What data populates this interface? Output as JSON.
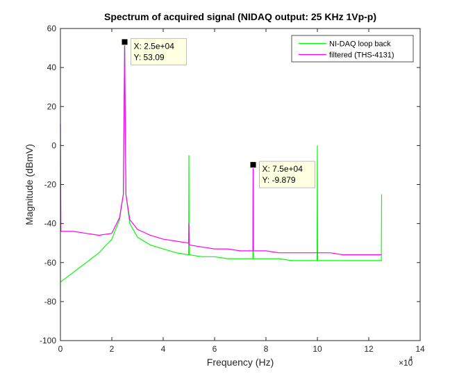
{
  "chart_data": {
    "type": "line",
    "title": "Spectrum of acquired signal (NIDAQ output: 25 KHz 1Vp-p)",
    "xlabel": "Frequency (Hz)",
    "ylabel": "Magnitude (dBmV)",
    "xlim": [
      0,
      140000
    ],
    "ylim": [
      -100,
      60
    ],
    "x_ticks": [
      0,
      20000,
      40000,
      60000,
      80000,
      100000,
      120000,
      140000
    ],
    "x_tick_labels": [
      "0",
      "2",
      "4",
      "6",
      "8",
      "10",
      "12",
      "14"
    ],
    "x_exponent_label": "×10",
    "x_exponent_power": "4",
    "y_ticks": [
      -100,
      -80,
      -60,
      -40,
      -20,
      0,
      20,
      40,
      60
    ],
    "y_tick_labels": [
      "-100",
      "-80",
      "-60",
      "-40",
      "-20",
      "0",
      "20",
      "40",
      "60"
    ],
    "grid": false,
    "legend_position": "top-right",
    "series": [
      {
        "name": "NI-DAQ loop back",
        "color": "#00ff00",
        "x": [
          0,
          2000,
          5000,
          10000,
          15000,
          20000,
          23000,
          24500,
          25000,
          25500,
          27000,
          30000,
          35000,
          40000,
          45000,
          49900,
          50000,
          50100,
          55000,
          60000,
          65000,
          70000,
          74900,
          75000,
          75100,
          80000,
          85000,
          90000,
          95000,
          99900,
          100000,
          100100,
          105000,
          110000,
          115000,
          120000,
          124900,
          125000
        ],
        "y": [
          -70,
          -68,
          -65,
          -60,
          -55,
          -48,
          -38,
          -25,
          53,
          -25,
          -40,
          -47,
          -51,
          -53,
          -55,
          -56,
          -5,
          -56,
          -57,
          -57,
          -58,
          -58,
          -58,
          -10,
          -58,
          -58,
          -58,
          -59,
          -59,
          -59,
          0,
          -59,
          -59,
          -59,
          -59,
          -59,
          -59,
          -25
        ]
      },
      {
        "name": "filtered (THS-4131)",
        "color": "#ff00ff",
        "x": [
          0,
          200,
          2000,
          5000,
          10000,
          15000,
          20000,
          23000,
          24500,
          25000,
          25500,
          27000,
          30000,
          35000,
          40000,
          45000,
          49900,
          50000,
          50100,
          55000,
          60000,
          65000,
          70000,
          74900,
          75000,
          75100,
          80000,
          85000,
          90000,
          95000,
          100000,
          105000,
          110000,
          115000,
          120000,
          125000
        ],
        "y": [
          11,
          -44,
          -44,
          -44,
          -45,
          -46,
          -45,
          -37,
          -25,
          53,
          -25,
          -38,
          -43,
          -46,
          -48,
          -49,
          -50,
          -40,
          -51,
          -52,
          -53,
          -53,
          -54,
          -54,
          -9.879,
          -54,
          -54,
          -55,
          -55,
          -55,
          -55,
          -55,
          -56,
          -56,
          -56,
          -56
        ]
      }
    ],
    "annotations": [
      {
        "x": 25000,
        "y": 53.09,
        "line1": "X: 2.5e+04",
        "line2": "Y: 53.09"
      },
      {
        "x": 75000,
        "y": -9.879,
        "line1": "X: 7.5e+04",
        "line2": "Y: -9.879"
      }
    ]
  }
}
